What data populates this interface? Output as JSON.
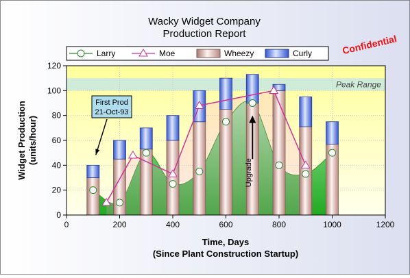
{
  "chart_data": {
    "type": "bar",
    "title": [
      "Wacky Widget Company",
      "Production Report"
    ],
    "xlabel": [
      "Time, Days",
      "(Since Plant Construction Startup)"
    ],
    "ylabel": [
      "Widget Production",
      "(units/hour)"
    ],
    "xlim": [
      0,
      1200
    ],
    "ylim": [
      0,
      120
    ],
    "x_ticks": [
      0,
      200,
      400,
      600,
      800,
      1000,
      1200
    ],
    "y_ticks": [
      0,
      20,
      40,
      60,
      80,
      100,
      120
    ],
    "grid": true,
    "legend_position": "top",
    "x": [
      100,
      200,
      300,
      400,
      500,
      600,
      700,
      800,
      900,
      1000
    ],
    "series": [
      {
        "name": "Larry",
        "kind": "spline-area-with-markers",
        "color": "#33bb33",
        "values": [
          20,
          10,
          50,
          25,
          35,
          75,
          90,
          40,
          33,
          50
        ]
      },
      {
        "name": "Moe",
        "kind": "line-with-markers",
        "color": "#cc3399",
        "x": [
          150,
          250,
          400,
          500,
          780,
          900
        ],
        "values": [
          10,
          48,
          33,
          88,
          100,
          40
        ]
      },
      {
        "name": "Wheezy",
        "kind": "stacked-bar",
        "color": "#d8a8a0",
        "values": [
          30,
          45,
          53,
          60,
          75,
          85,
          90,
          100,
          71,
          57
        ]
      },
      {
        "name": "Curly",
        "kind": "stacked-bar-top",
        "color": "#5577dd",
        "values": [
          10,
          15,
          17,
          20,
          25,
          25,
          23,
          5,
          24,
          18
        ]
      }
    ],
    "peak_range": {
      "label": "Peak Range",
      "from": 100,
      "to": 110
    },
    "annotations": {
      "first_prod": {
        "lines": [
          "First Prod",
          "21-Oct-93"
        ],
        "target_x": 100,
        "target_y": 45
      },
      "upgrade": {
        "label": "Upgrade",
        "x": 700,
        "y_from": 45,
        "y_to": 80
      }
    },
    "watermark": "Confidential"
  },
  "colors": {
    "frame_background": "#dde0ee",
    "plot_background_top": "#ffff9c",
    "plot_background_bottom": "#ffffe8",
    "peak_band": "#d0ecd8",
    "watermark": "#ee1111",
    "annotation_box": "#aeddee"
  }
}
